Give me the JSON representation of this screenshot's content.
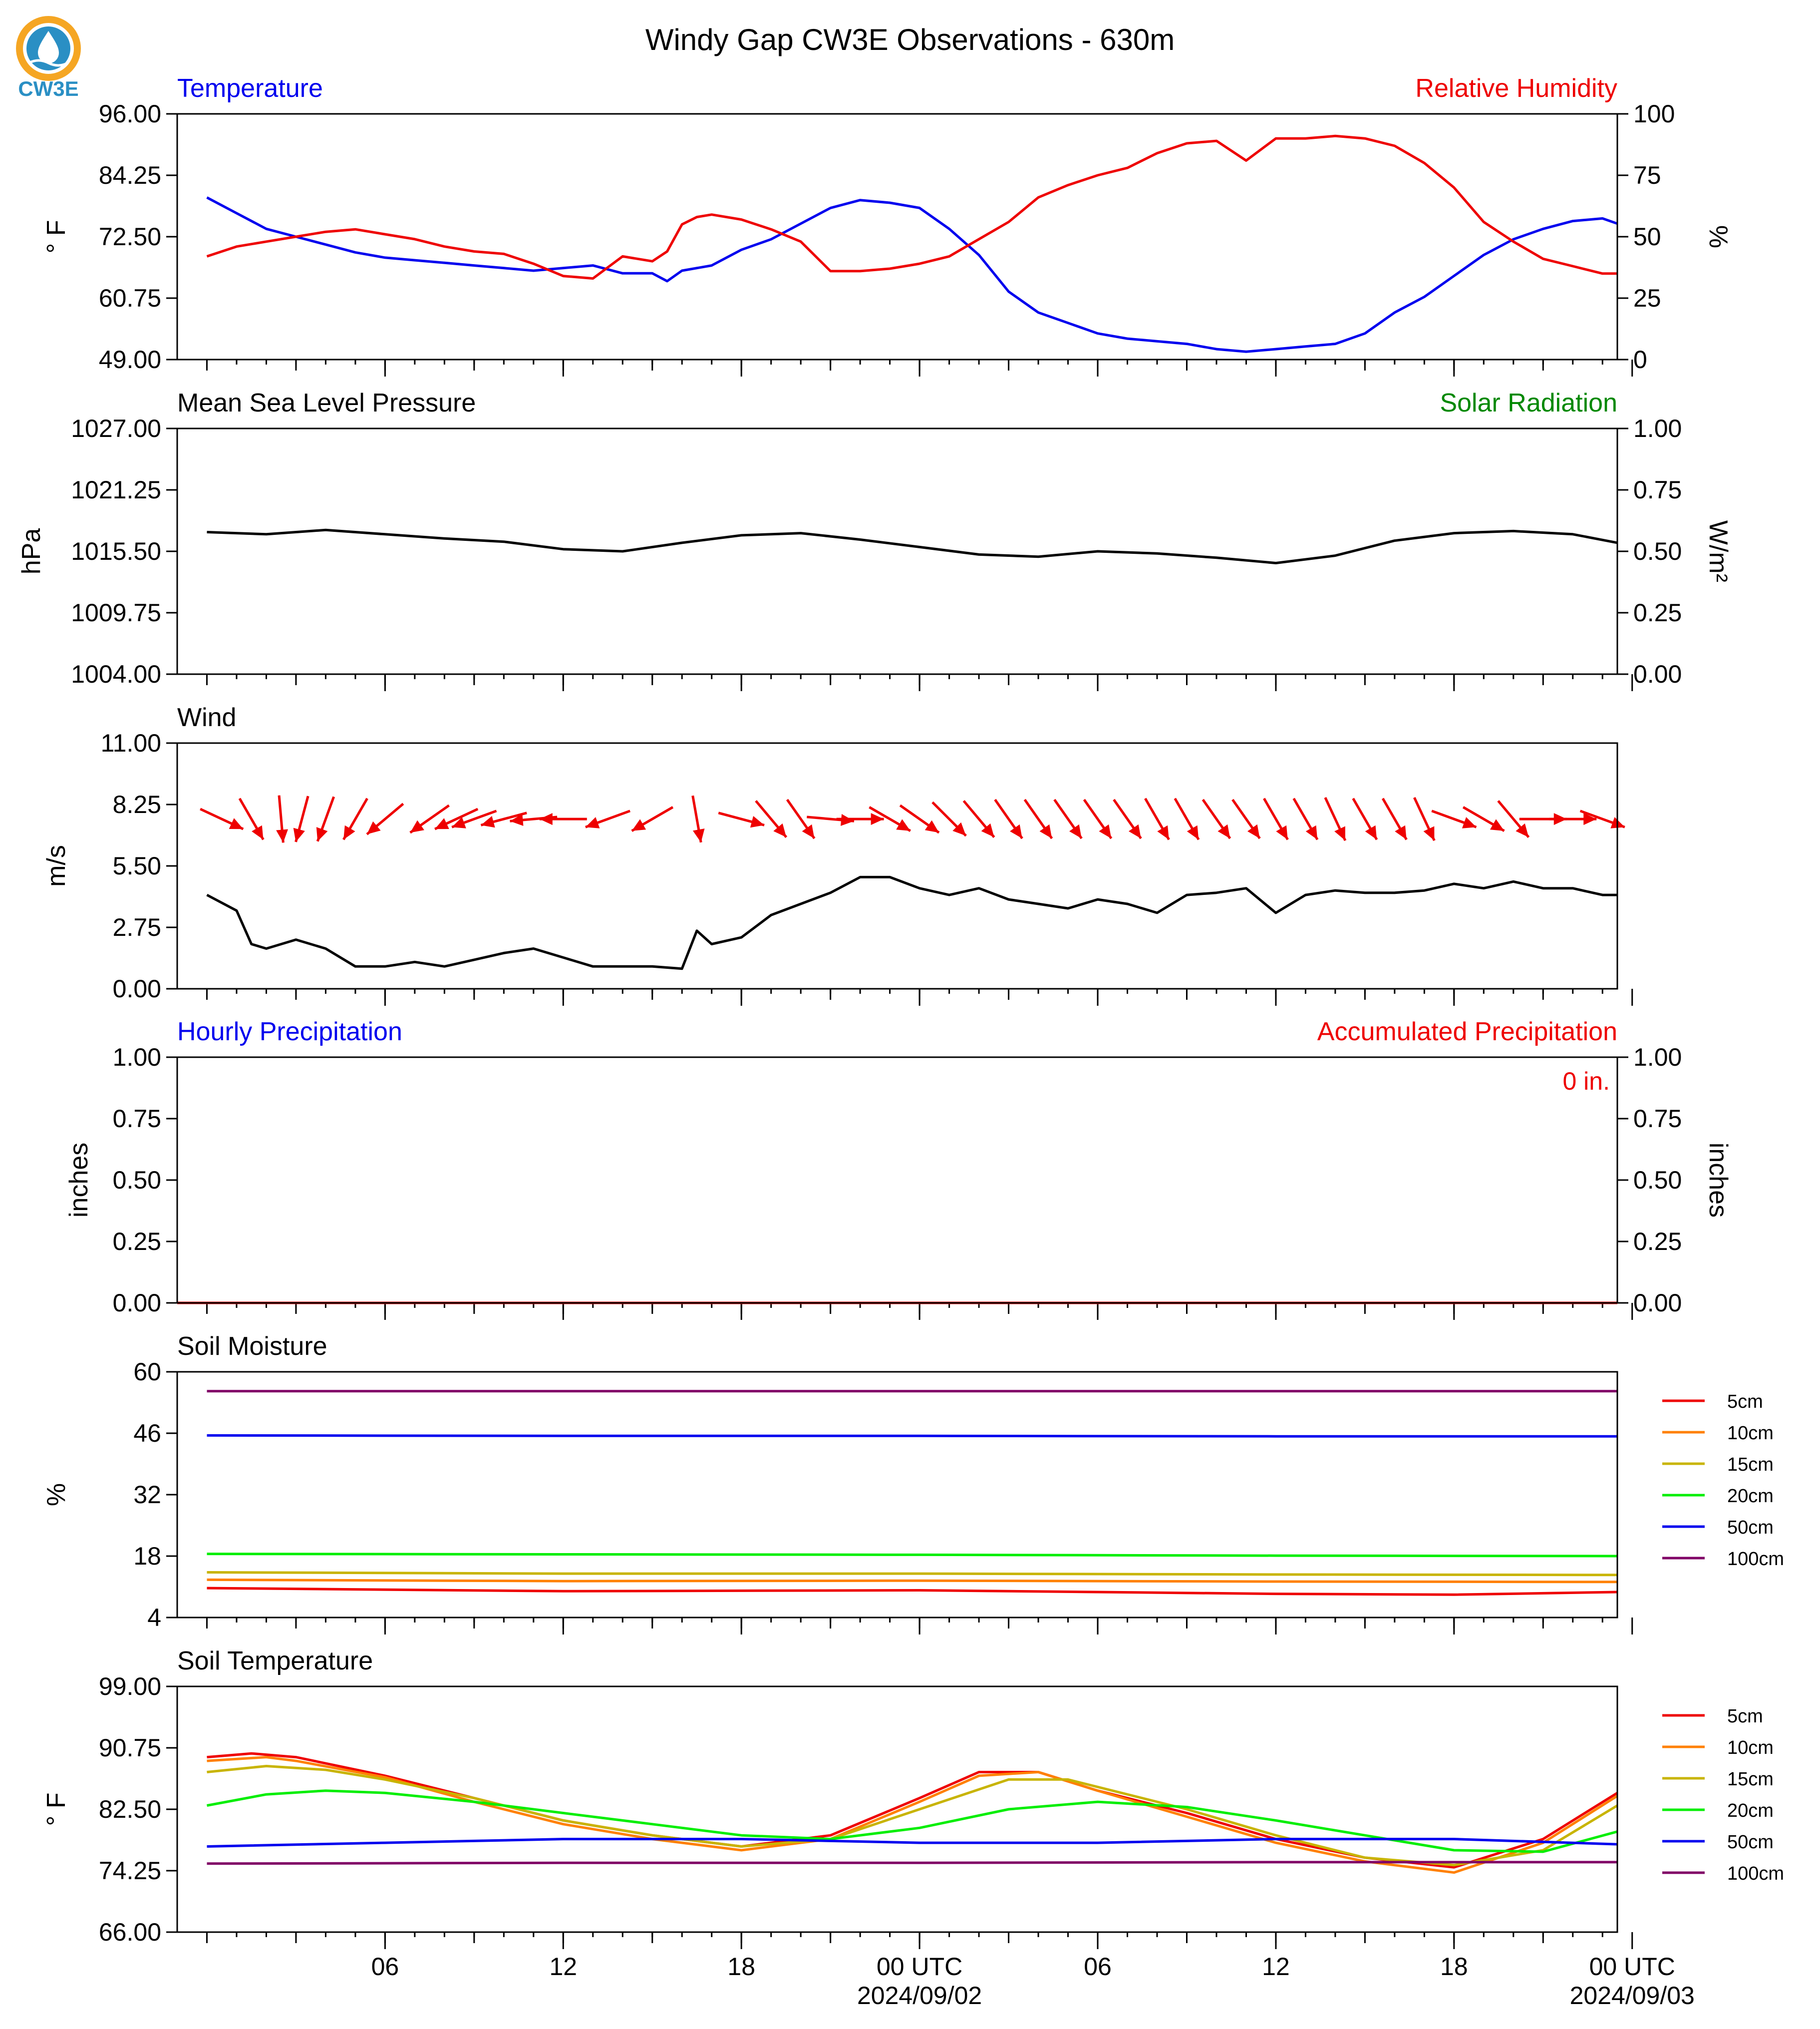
{
  "title": "Windy Gap CW3E Observations - 630m",
  "logo": {
    "text": "CW3E",
    "colors": {
      "ring": "#f5a623",
      "drop": "#2a8fc4",
      "wave": "#1c6fa3"
    }
  },
  "colors": {
    "temp": "#0000ee",
    "rh": "#ee0000",
    "solar": "#008800",
    "black": "#000000"
  },
  "x_axis": {
    "start_hours": -1,
    "end_hours": 47.5,
    "ticks": [
      {
        "h": 6,
        "label": "06",
        "sub": ""
      },
      {
        "h": 12,
        "label": "12",
        "sub": ""
      },
      {
        "h": 18,
        "label": "18",
        "sub": ""
      },
      {
        "h": 24,
        "label": "00 UTC",
        "sub": "2024/09/02"
      },
      {
        "h": 30,
        "label": "06",
        "sub": ""
      },
      {
        "h": 36,
        "label": "12",
        "sub": ""
      },
      {
        "h": 42,
        "label": "18",
        "sub": ""
      },
      {
        "h": 48,
        "label": "00 UTC",
        "sub": "2024/09/03"
      }
    ]
  },
  "chart_data": [
    {
      "id": "temp_rh",
      "type": "line",
      "left_title": "Temperature",
      "right_title": "Relative Humidity",
      "ylabel": "° F",
      "y2label": "%",
      "ylim": [
        49,
        96
      ],
      "yticks": [
        "49.00",
        "60.75",
        "72.50",
        "84.25",
        "96.00"
      ],
      "y2lim": [
        0,
        100
      ],
      "y2ticks": [
        "0",
        "25",
        "50",
        "75",
        "100"
      ],
      "series": [
        {
          "name": "Temperature",
          "axis": "left",
          "color": "#0000ee",
          "x": [
            0,
            1,
            2,
            3,
            4,
            5,
            6,
            7,
            8,
            9,
            10,
            11,
            12,
            13,
            14,
            15,
            15.5,
            16,
            17,
            18,
            19,
            20,
            21,
            22,
            23,
            24,
            25,
            26,
            27,
            28,
            29,
            30,
            31,
            32,
            33,
            34,
            35,
            36,
            37,
            38,
            39,
            40,
            41,
            42,
            43,
            44,
            45,
            46,
            47,
            47.5
          ],
          "y": [
            80,
            77,
            74,
            72.5,
            71,
            69.5,
            68.5,
            68,
            67.5,
            67,
            66.5,
            66,
            66.5,
            67,
            65.5,
            65.5,
            64,
            66,
            67,
            70,
            72,
            75,
            78,
            79.5,
            79,
            78,
            74,
            69,
            62,
            58,
            56,
            54,
            53,
            52.5,
            52,
            51,
            50.5,
            51,
            51.5,
            52,
            54,
            58,
            61,
            65,
            69,
            72,
            74,
            75.5,
            76,
            75
          ]
        },
        {
          "name": "Relative Humidity",
          "axis": "right",
          "color": "#ee0000",
          "x": [
            0,
            1,
            2,
            3,
            4,
            5,
            6,
            7,
            8,
            9,
            10,
            11,
            12,
            13,
            14,
            15,
            15.5,
            16,
            16.5,
            17,
            18,
            19,
            20,
            21,
            22,
            23,
            24,
            25,
            26,
            27,
            28,
            29,
            30,
            31,
            32,
            33,
            34,
            35,
            36,
            37,
            38,
            39,
            40,
            41,
            42,
            43,
            44,
            45,
            46,
            47,
            47.5
          ],
          "y": [
            42,
            46,
            48,
            50,
            52,
            53,
            51,
            49,
            46,
            44,
            43,
            39,
            34,
            33,
            42,
            40,
            44,
            55,
            58,
            59,
            57,
            53,
            48,
            36,
            36,
            37,
            39,
            42,
            49,
            56,
            66,
            71,
            75,
            78,
            84,
            88,
            89,
            81,
            90,
            90,
            91,
            90,
            87,
            80,
            70,
            56,
            48,
            41,
            38,
            35,
            35
          ]
        }
      ]
    },
    {
      "id": "pressure",
      "type": "line",
      "left_title": "Mean Sea Level Pressure",
      "right_title": "Solar Radiation",
      "ylabel": "hPa",
      "y2label": "W/m²",
      "ylim": [
        1004,
        1027
      ],
      "yticks": [
        "1004.00",
        "1009.75",
        "1015.50",
        "1021.25",
        "1027.00"
      ],
      "y2lim": [
        0,
        1
      ],
      "y2ticks": [
        "0.00",
        "0.25",
        "0.50",
        "0.75",
        "1.00"
      ],
      "series": [
        {
          "name": "Mean Sea Level Pressure",
          "axis": "left",
          "color": "#000000",
          "x": [
            0,
            2,
            4,
            6,
            8,
            10,
            12,
            14,
            16,
            18,
            20,
            22,
            24,
            26,
            28,
            30,
            32,
            34,
            36,
            38,
            40,
            42,
            44,
            46,
            47.5
          ],
          "y": [
            1017.3,
            1017.1,
            1017.5,
            1017.1,
            1016.7,
            1016.4,
            1015.7,
            1015.5,
            1016.3,
            1017,
            1017.2,
            1016.6,
            1015.9,
            1015.2,
            1015,
            1015.5,
            1015.3,
            1014.9,
            1014.4,
            1015.1,
            1016.5,
            1017.2,
            1017.4,
            1017.1,
            1016.3
          ]
        }
      ]
    },
    {
      "id": "wind",
      "type": "line",
      "left_title": "Wind",
      "right_title": "",
      "ylabel": "m/s",
      "y2label": "",
      "ylim": [
        0,
        11
      ],
      "yticks": [
        "0.00",
        "2.75",
        "5.50",
        "8.25",
        "11.00"
      ],
      "series": [
        {
          "name": "Wind Speed",
          "axis": "left",
          "color": "#000000",
          "x": [
            0,
            1,
            1.5,
            2,
            3,
            4,
            5,
            6,
            7,
            8,
            9,
            10,
            11,
            12,
            13,
            14,
            15,
            16,
            16.5,
            17,
            18,
            19,
            20,
            21,
            22,
            23,
            24,
            25,
            26,
            27,
            28,
            29,
            30,
            31,
            32,
            33,
            34,
            35,
            36,
            37,
            38,
            39,
            40,
            41,
            42,
            43,
            44,
            45,
            46,
            47,
            47.5
          ],
          "y": [
            4.2,
            3.5,
            2,
            1.8,
            2.2,
            1.8,
            1,
            1,
            1.2,
            1,
            1.3,
            1.6,
            1.8,
            1.4,
            1,
            1,
            1,
            0.9,
            2.6,
            2,
            2.3,
            3.3,
            3.8,
            4.3,
            5,
            5,
            4.5,
            4.2,
            4.5,
            4,
            3.8,
            3.6,
            4,
            3.8,
            3.4,
            4.2,
            4.3,
            4.5,
            3.4,
            4.2,
            4.4,
            4.3,
            4.3,
            4.4,
            4.7,
            4.5,
            4.8,
            4.5,
            4.5,
            4.2,
            4.2
          ]
        }
      ],
      "arrows": {
        "color": "#ee0000",
        "x": [
          0.5,
          1.5,
          2.5,
          3.2,
          4,
          5,
          6,
          7.5,
          8.4,
          9,
          10,
          11,
          12,
          13.5,
          15,
          16.5,
          18,
          19,
          20,
          21,
          22,
          23,
          24,
          25,
          26,
          27,
          28,
          29,
          30,
          31,
          32,
          33,
          34,
          35,
          36,
          37,
          38,
          39,
          40,
          41,
          42,
          43,
          44,
          45,
          46,
          47
        ],
        "dir_deg": [
          115,
          150,
          175,
          195,
          200,
          210,
          230,
          235,
          245,
          250,
          255,
          265,
          270,
          250,
          240,
          170,
          105,
          140,
          145,
          95,
          90,
          120,
          125,
          135,
          140,
          145,
          145,
          145,
          145,
          145,
          150,
          150,
          145,
          145,
          150,
          150,
          155,
          150,
          150,
          155,
          110,
          120,
          140,
          90,
          90,
          110
        ]
      }
    },
    {
      "id": "precip",
      "type": "line",
      "left_title": "Hourly Precipitation",
      "right_title": "Accumulated Precipitation",
      "ylabel": "inches",
      "y2label": "inches",
      "ylim": [
        0,
        1
      ],
      "yticks": [
        "0.00",
        "0.25",
        "0.50",
        "0.75",
        "1.00"
      ],
      "y2lim": [
        0,
        1
      ],
      "y2ticks": [
        "0.00",
        "0.25",
        "0.50",
        "0.75",
        "1.00"
      ],
      "annotation": "0 in.",
      "series": [
        {
          "name": "Hourly Precipitation",
          "axis": "left",
          "color": "#0000ee",
          "x": [
            -1,
            47.5
          ],
          "y": [
            0,
            0
          ]
        },
        {
          "name": "Accumulated Precipitation",
          "axis": "right",
          "color": "#ee0000",
          "x": [
            -1,
            47.5
          ],
          "y": [
            0,
            0
          ]
        }
      ]
    },
    {
      "id": "soil_moisture",
      "type": "line",
      "left_title": "Soil Moisture",
      "right_title": "",
      "ylabel": "%",
      "y2label": "",
      "ylim": [
        4,
        60
      ],
      "yticks": [
        "4",
        "18",
        "32",
        "46",
        "60"
      ],
      "series": [
        {
          "name": "5cm",
          "color": "#ee0000",
          "x": [
            0,
            12,
            24,
            36,
            42,
            47.5
          ],
          "y": [
            10.7,
            10,
            10.2,
            9.4,
            9.2,
            9.8
          ]
        },
        {
          "name": "10cm",
          "color": "#ff8000",
          "x": [
            0,
            12,
            24,
            36,
            47.5
          ],
          "y": [
            12.6,
            12.3,
            12.4,
            12.2,
            12.1
          ]
        },
        {
          "name": "15cm",
          "color": "#c8b400",
          "x": [
            0,
            12,
            24,
            36,
            47.5
          ],
          "y": [
            14.3,
            14,
            14,
            13.8,
            13.7
          ]
        },
        {
          "name": "20cm",
          "color": "#00ee00",
          "x": [
            0,
            12,
            24,
            36,
            47.5
          ],
          "y": [
            18.5,
            18.4,
            18.3,
            18.1,
            18
          ]
        },
        {
          "name": "50cm",
          "color": "#0000ee",
          "x": [
            0,
            12,
            24,
            36,
            47.5
          ],
          "y": [
            45.5,
            45.4,
            45.4,
            45.3,
            45.3
          ]
        },
        {
          "name": "100cm",
          "color": "#800066",
          "x": [
            0,
            12,
            24,
            36,
            47.5
          ],
          "y": [
            55.6,
            55.6,
            55.6,
            55.6,
            55.6
          ]
        }
      ],
      "legend": "right"
    },
    {
      "id": "soil_temperature",
      "type": "line",
      "left_title": "Soil Temperature",
      "right_title": "",
      "ylabel": "° F",
      "y2label": "",
      "ylim": [
        66,
        99
      ],
      "yticks": [
        "66.00",
        "74.25",
        "82.50",
        "90.75",
        "99.00"
      ],
      "series": [
        {
          "name": "5cm",
          "color": "#ee0000",
          "x": [
            0,
            1.5,
            3,
            6,
            9,
            12,
            15,
            18,
            21,
            24,
            26,
            28,
            30,
            33,
            36,
            39,
            42,
            45,
            47.5
          ],
          "y": [
            89.5,
            90,
            89.5,
            87,
            84,
            81,
            79,
            77.5,
            79,
            84,
            87.5,
            87.5,
            85,
            82,
            78.5,
            76,
            74.7,
            78.5,
            84.7
          ]
        },
        {
          "name": "10cm",
          "color": "#ff8000",
          "x": [
            0,
            2,
            3,
            6,
            9,
            12,
            15,
            18,
            21,
            24,
            26,
            28,
            30,
            33,
            36,
            39,
            42,
            45,
            47.5
          ],
          "y": [
            89,
            89.5,
            89,
            86.8,
            83.5,
            80.5,
            78.5,
            77,
            78.5,
            83.5,
            87,
            87.5,
            85,
            81.5,
            78,
            75.5,
            74,
            78,
            84.3
          ]
        },
        {
          "name": "15cm",
          "color": "#c8b400",
          "x": [
            0,
            2,
            4,
            6,
            9,
            12,
            15,
            18,
            21,
            24,
            27,
            29,
            30,
            33,
            36,
            39,
            42,
            45,
            47.5
          ],
          "y": [
            87.5,
            88.3,
            87.8,
            86.5,
            84,
            81,
            79,
            77.5,
            78.5,
            82.5,
            86.5,
            86.5,
            85.5,
            82.5,
            79,
            76,
            75,
            77,
            83
          ]
        },
        {
          "name": "20cm",
          "color": "#00ee00",
          "x": [
            0,
            2,
            4,
            6,
            9,
            12,
            15,
            18,
            21,
            24,
            27,
            30,
            33,
            36,
            39,
            42,
            45,
            47.5
          ],
          "y": [
            83,
            84.5,
            85,
            84.7,
            83.5,
            82,
            80.5,
            79,
            78.5,
            80,
            82.5,
            83.5,
            82.8,
            81,
            79,
            77,
            76.8,
            79.5
          ]
        },
        {
          "name": "50cm",
          "color": "#0000ee",
          "x": [
            0,
            6,
            12,
            18,
            24,
            30,
            36,
            42,
            47.5
          ],
          "y": [
            77.5,
            78,
            78.5,
            78.5,
            78,
            78,
            78.5,
            78.5,
            77.8
          ]
        },
        {
          "name": "100cm",
          "color": "#800066",
          "x": [
            0,
            12,
            24,
            36,
            47.5
          ],
          "y": [
            75.2,
            75.3,
            75.3,
            75.4,
            75.4
          ]
        }
      ],
      "legend": "right"
    }
  ]
}
